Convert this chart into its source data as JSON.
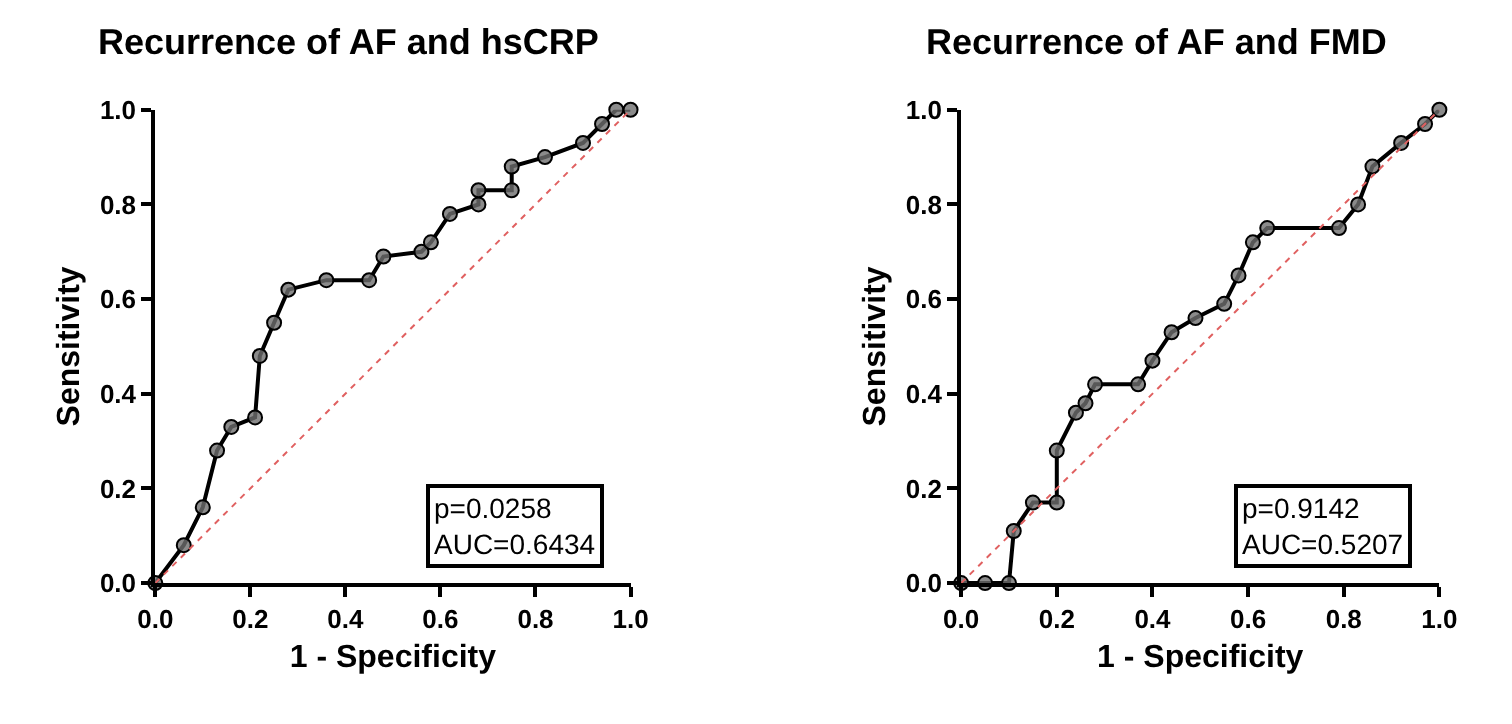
{
  "chart_data": [
    {
      "type": "line",
      "title": "Recurrence of AF and hsCRP",
      "xlabel": "1 - Specificity",
      "ylabel": "Sensitivity",
      "xlim": [
        0,
        1
      ],
      "ylim": [
        0,
        1
      ],
      "xticks": [
        {
          "value": 0,
          "label": "0.0"
        },
        {
          "value": 0.2,
          "label": "0.2"
        },
        {
          "value": 0.4,
          "label": "0.4"
        },
        {
          "value": 0.6,
          "label": "0.6"
        },
        {
          "value": 0.8,
          "label": "0.8"
        },
        {
          "value": 1,
          "label": "1.0"
        }
      ],
      "yticks": [
        {
          "value": 0,
          "label": "0.0"
        },
        {
          "value": 0.2,
          "label": "0.2"
        },
        {
          "value": 0.4,
          "label": "0.4"
        },
        {
          "value": 0.6,
          "label": "0.6"
        },
        {
          "value": 0.8,
          "label": "0.8"
        },
        {
          "value": 1,
          "label": "1.0"
        }
      ],
      "annotations": [
        "p=0.0258\nAUC=0.6434"
      ],
      "series": [
        {
          "color": "#000000",
          "marker": "circle",
          "x": [
            0,
            0.06,
            0.1,
            0.13,
            0.16,
            0.21,
            0.22,
            0.25,
            0.28,
            0.36,
            0.45,
            0.48,
            0.56,
            0.58,
            0.62,
            0.68,
            0.68,
            0.75,
            0.75,
            0.82,
            0.9,
            0.94,
            0.97,
            1.0
          ],
          "values": [
            0,
            0.08,
            0.16,
            0.28,
            0.33,
            0.35,
            0.48,
            0.55,
            0.62,
            0.64,
            0.64,
            0.69,
            0.7,
            0.72,
            0.78,
            0.8,
            0.83,
            0.83,
            0.88,
            0.9,
            0.93,
            0.97,
            1.0,
            1.0
          ]
        },
        {
          "color": "#e06060",
          "marker": "none",
          "line_style": "dotted",
          "x": [
            0,
            1
          ],
          "values": [
            0,
            1
          ]
        }
      ]
    },
    {
      "type": "line",
      "title": "Recurrence of AF and FMD",
      "xlabel": "1 - Specificity",
      "ylabel": "Sensitivity",
      "xlim": [
        0,
        1
      ],
      "ylim": [
        0,
        1
      ],
      "xticks": [
        {
          "value": 0,
          "label": "0.0"
        },
        {
          "value": 0.2,
          "label": "0.2"
        },
        {
          "value": 0.4,
          "label": "0.4"
        },
        {
          "value": 0.6,
          "label": "0.6"
        },
        {
          "value": 0.8,
          "label": "0.8"
        },
        {
          "value": 1,
          "label": "1.0"
        }
      ],
      "yticks": [
        {
          "value": 0,
          "label": "0.0"
        },
        {
          "value": 0.2,
          "label": "0.2"
        },
        {
          "value": 0.4,
          "label": "0.4"
        },
        {
          "value": 0.6,
          "label": "0.6"
        },
        {
          "value": 0.8,
          "label": "0.8"
        },
        {
          "value": 1,
          "label": "1.0"
        }
      ],
      "annotations": [
        "p=0.9142\nAUC=0.5207"
      ],
      "series": [
        {
          "color": "#000000",
          "marker": "circle",
          "x": [
            0,
            0.05,
            0.1,
            0.11,
            0.15,
            0.2,
            0.2,
            0.24,
            0.26,
            0.28,
            0.37,
            0.4,
            0.44,
            0.49,
            0.55,
            0.58,
            0.61,
            0.64,
            0.79,
            0.83,
            0.86,
            0.92,
            0.97,
            1.0
          ],
          "values": [
            0,
            0,
            0,
            0.11,
            0.17,
            0.17,
            0.28,
            0.36,
            0.38,
            0.42,
            0.42,
            0.47,
            0.53,
            0.56,
            0.59,
            0.65,
            0.72,
            0.75,
            0.75,
            0.8,
            0.88,
            0.93,
            0.97,
            1.0
          ]
        },
        {
          "color": "#e06060",
          "marker": "none",
          "line_style": "dotted",
          "x": [
            0,
            1
          ],
          "values": [
            0,
            1
          ]
        }
      ]
    }
  ]
}
